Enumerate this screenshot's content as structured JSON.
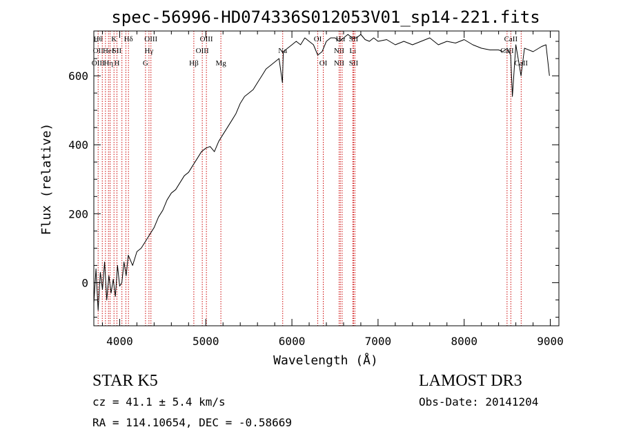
{
  "chart_data": {
    "type": "line",
    "title": "spec-56996-HD074336S012053V01_sp14-221.fits",
    "xlabel": "Wavelength (Å)",
    "ylabel": "Flux (relative)",
    "xlim": [
      3700,
      9100
    ],
    "ylim": [
      -125,
      730
    ],
    "xticks": [
      4000,
      5000,
      6000,
      7000,
      8000,
      9000
    ],
    "yticks": [
      0,
      200,
      400,
      600
    ],
    "grid": false,
    "line_color": "#000000",
    "marker_color": "#cc0000",
    "series": [
      {
        "x": [
          3700,
          3725,
          3750,
          3775,
          3800,
          3825,
          3850,
          3875,
          3900,
          3925,
          3950,
          3975,
          4000,
          4025,
          4050,
          4075,
          4100,
          4150,
          4200,
          4250,
          4300,
          4350,
          4400,
          4450,
          4500,
          4550,
          4600,
          4650,
          4700,
          4750,
          4800,
          4850,
          4900,
          4950,
          5000,
          5050,
          5100,
          5150,
          5200,
          5250,
          5300,
          5350,
          5400,
          5450,
          5500,
          5550,
          5600,
          5650,
          5700,
          5750,
          5800,
          5850,
          5890,
          5900,
          5950,
          6000,
          6050,
          6100,
          6150,
          6200,
          6250,
          6300,
          6350,
          6400,
          6450,
          6500,
          6550,
          6600,
          6650,
          6700,
          6750,
          6800,
          6850,
          6900,
          6950,
          7000,
          7100,
          7200,
          7300,
          7400,
          7500,
          7600,
          7700,
          7800,
          7900,
          8000,
          8100,
          8200,
          8300,
          8400,
          8450,
          8500,
          8540,
          8560,
          8600,
          8660,
          8700,
          8800,
          8900,
          8950,
          8990
        ],
        "y": [
          -60,
          40,
          -80,
          30,
          -20,
          60,
          -50,
          20,
          -30,
          10,
          -40,
          50,
          -10,
          0,
          60,
          20,
          80,
          50,
          90,
          100,
          120,
          140,
          160,
          190,
          210,
          240,
          260,
          270,
          290,
          310,
          320,
          340,
          360,
          380,
          390,
          395,
          380,
          410,
          430,
          450,
          470,
          490,
          520,
          540,
          550,
          560,
          580,
          600,
          620,
          630,
          640,
          650,
          580,
          670,
          680,
          690,
          700,
          690,
          710,
          700,
          690,
          660,
          670,
          700,
          710,
          710,
          700,
          710,
          720,
          710,
          710,
          720,
          705,
          700,
          710,
          700,
          705,
          690,
          700,
          690,
          700,
          710,
          690,
          700,
          695,
          705,
          690,
          680,
          675,
          675,
          670,
          680,
          660,
          540,
          690,
          600,
          680,
          670,
          685,
          690,
          600
        ]
      }
    ],
    "lines": [
      {
        "x": 3750,
        "labels": [
          "Hθ",
          "OII",
          "OIII"
        ]
      },
      {
        "x": 3798,
        "labels": [
          "",
          "",
          ""
        ]
      },
      {
        "x": 3835,
        "labels": [
          "",
          "",
          ""
        ]
      },
      {
        "x": 3870,
        "labels": [
          "",
          "HeI",
          "Hη"
        ]
      },
      {
        "x": 3889,
        "labels": [
          "",
          "",
          ""
        ]
      },
      {
        "x": 3934,
        "labels": [
          "K",
          "",
          ""
        ]
      },
      {
        "x": 3968,
        "labels": [
          "",
          "SII",
          "H"
        ]
      },
      {
        "x": 4026,
        "labels": [
          "",
          "",
          ""
        ]
      },
      {
        "x": 4072,
        "labels": [
          "",
          "",
          ""
        ]
      },
      {
        "x": 4102,
        "labels": [
          "Hδ",
          "",
          ""
        ]
      },
      {
        "x": 4300,
        "labels": [
          "",
          "",
          "G"
        ]
      },
      {
        "x": 4340,
        "labels": [
          "",
          "Hγ",
          ""
        ]
      },
      {
        "x": 4363,
        "labels": [
          "OIII",
          "",
          ""
        ]
      },
      {
        "x": 4861,
        "labels": [
          "",
          "",
          "Hβ"
        ]
      },
      {
        "x": 4959,
        "labels": [
          "",
          "OIII",
          ""
        ]
      },
      {
        "x": 5007,
        "labels": [
          "OIII",
          "",
          ""
        ]
      },
      {
        "x": 5175,
        "labels": [
          "",
          "",
          "Mg"
        ]
      },
      {
        "x": 5893,
        "labels": [
          "",
          "Na",
          ""
        ]
      },
      {
        "x": 6300,
        "labels": [
          "OI",
          "",
          ""
        ]
      },
      {
        "x": 6364,
        "labels": [
          "",
          "",
          "OI"
        ]
      },
      {
        "x": 6548,
        "labels": [
          "",
          "NII",
          "NII"
        ]
      },
      {
        "x": 6563,
        "labels": [
          "Hα",
          "",
          ""
        ]
      },
      {
        "x": 6583,
        "labels": [
          "",
          "",
          ""
        ]
      },
      {
        "x": 6707,
        "labels": [
          "",
          "Li",
          ""
        ]
      },
      {
        "x": 6716,
        "labels": [
          "SII",
          "",
          "SII"
        ]
      },
      {
        "x": 6731,
        "labels": [
          "",
          "",
          ""
        ]
      },
      {
        "x": 8498,
        "labels": [
          "",
          "CaII",
          ""
        ]
      },
      {
        "x": 8542,
        "labels": [
          "CaII",
          "",
          ""
        ]
      },
      {
        "x": 8662,
        "labels": [
          "",
          "",
          "CaII"
        ]
      }
    ]
  },
  "info": {
    "object": "STAR    K5",
    "cz": "cz = 41.1 ± 5.4 km/s",
    "radec": "RA = 114.10654, DEC =  -0.58669",
    "survey": "LAMOST DR3",
    "obs_date": "Obs-Date: 20141204"
  }
}
